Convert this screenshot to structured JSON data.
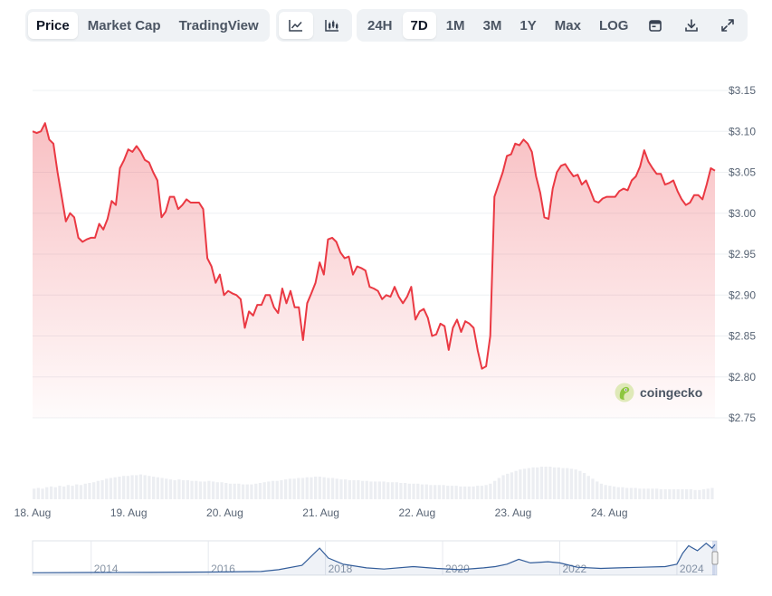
{
  "toolbar": {
    "view_tabs": [
      "Price",
      "Market Cap",
      "TradingView"
    ],
    "active_view": "Price",
    "chart_style_icons": [
      "line-chart-icon",
      "candlestick-chart-icon"
    ],
    "active_chart_style": "line-chart-icon",
    "ranges": [
      "24H",
      "7D",
      "1M",
      "3M",
      "1Y",
      "Max",
      "LOG"
    ],
    "active_range": "7D",
    "action_icons": [
      "calendar-icon",
      "download-icon",
      "expand-icon"
    ]
  },
  "brand": {
    "name": "coingecko"
  },
  "colors": {
    "line": "#ea3943",
    "fill": "#ea3943",
    "grid": "#eef0f3",
    "volume": "#eceef2",
    "navigator": "#335d9a"
  },
  "chart_data": {
    "type": "area",
    "y_ticks": [
      "$3.15",
      "$3.10",
      "$3.05",
      "$3.00",
      "$2.95",
      "$2.90",
      "$2.85",
      "$2.80",
      "$2.75"
    ],
    "y_tick_values": [
      3.15,
      3.1,
      3.05,
      3.0,
      2.95,
      2.9,
      2.85,
      2.8,
      2.75
    ],
    "ylim": [
      2.75,
      3.15
    ],
    "x_ticks": [
      "18. Aug",
      "19. Aug",
      "20. Aug",
      "21. Aug",
      "22. Aug",
      "23. Aug",
      "24. Aug"
    ],
    "x_start": "18. Aug",
    "x_days": 7.1,
    "grid": true,
    "series": [
      {
        "values": [
          3.1,
          3.098,
          3.1,
          3.11,
          3.09,
          3.085,
          3.05,
          3.02,
          2.99,
          3.0,
          2.995,
          2.97,
          2.965,
          2.968,
          2.97,
          2.97,
          2.987,
          2.98,
          2.993,
          3.015,
          3.01,
          3.055,
          3.065,
          3.078,
          3.075,
          3.082,
          3.075,
          3.065,
          3.062,
          3.05,
          3.04,
          2.995,
          3.002,
          3.02,
          3.02,
          3.005,
          3.01,
          3.017,
          3.013,
          3.013,
          3.013,
          3.005,
          2.945,
          2.935,
          2.915,
          2.925,
          2.9,
          2.905,
          2.902,
          2.9,
          2.895,
          2.86,
          2.88,
          2.875,
          2.888,
          2.888,
          2.9,
          2.9,
          2.885,
          2.878,
          2.908,
          2.89,
          2.905,
          2.885,
          2.885,
          2.845,
          2.89,
          2.902,
          2.915,
          2.94,
          2.925,
          2.968,
          2.97,
          2.965,
          2.952,
          2.945,
          2.947,
          2.925,
          2.935,
          2.933,
          2.93,
          2.91,
          2.908,
          2.905,
          2.895,
          2.9,
          2.898,
          2.91,
          2.898,
          2.89,
          2.898,
          2.91,
          2.87,
          2.88,
          2.883,
          2.872,
          2.85,
          2.852,
          2.865,
          2.862,
          2.833,
          2.86,
          2.87,
          2.855,
          2.868,
          2.865,
          2.86,
          2.832,
          2.81,
          2.813,
          2.85,
          3.02,
          3.035,
          3.05,
          3.07,
          3.072,
          3.085,
          3.083,
          3.09,
          3.085,
          3.075,
          3.045,
          3.025,
          2.995,
          2.993,
          3.03,
          3.05,
          3.058,
          3.06,
          3.052,
          3.045,
          3.047,
          3.035,
          3.04,
          3.028,
          3.015,
          3.013,
          3.018,
          3.02,
          3.02,
          3.02,
          3.027,
          3.03,
          3.028,
          3.04,
          3.045,
          3.057,
          3.077,
          3.063,
          3.055,
          3.048,
          3.048,
          3.035,
          3.037,
          3.04,
          3.027,
          3.017,
          3.01,
          3.013,
          3.022,
          3.022,
          3.017,
          3.035,
          3.055,
          3.052
        ]
      }
    ],
    "volume": {
      "values": [
        15,
        16,
        15,
        17,
        18,
        17,
        19,
        18,
        20,
        19,
        21,
        20,
        22,
        23,
        24,
        26,
        27,
        29,
        30,
        31,
        32,
        33,
        33,
        34,
        34,
        35,
        34,
        33,
        32,
        31,
        30,
        29,
        28,
        27,
        28,
        27,
        27,
        26,
        26,
        25,
        25,
        26,
        25,
        24,
        24,
        23,
        22,
        22,
        22,
        21,
        21,
        21,
        22,
        23,
        24,
        25,
        26,
        26,
        27,
        28,
        29,
        29,
        30,
        30,
        31,
        31,
        32,
        32,
        31,
        30,
        30,
        29,
        28,
        28,
        27,
        27,
        27,
        26,
        26,
        25,
        25,
        25,
        25,
        24,
        24,
        24,
        23,
        23,
        22,
        22,
        22,
        21,
        21,
        20,
        20,
        20,
        20,
        19,
        19,
        19,
        18,
        18,
        18,
        18,
        19,
        19,
        20,
        22,
        26,
        30,
        34,
        36,
        38,
        40,
        42,
        43,
        44,
        45,
        45,
        46,
        46,
        46,
        45,
        45,
        44,
        44,
        43,
        42,
        40,
        37,
        33,
        29,
        25,
        22,
        20,
        19,
        18,
        17,
        17,
        16,
        16,
        16,
        15,
        15,
        15,
        15,
        15,
        14,
        14,
        14,
        14,
        14,
        14,
        14,
        14,
        13,
        13,
        14,
        15,
        16
      ]
    },
    "navigator": {
      "x_ticks": [
        "2014",
        "2016",
        "2018",
        "2020",
        "2022",
        "2024"
      ],
      "x_tick_years": [
        2014,
        2016,
        2018,
        2020,
        2022,
        2024
      ],
      "x_range": [
        2013.0,
        2024.65
      ],
      "points": [
        [
          2013.0,
          2.0
        ],
        [
          2014.0,
          2.2
        ],
        [
          2015.0,
          2.3
        ],
        [
          2016.0,
          2.6
        ],
        [
          2016.9,
          3.0
        ],
        [
          2017.2,
          4.5
        ],
        [
          2017.6,
          8.0
        ],
        [
          2017.9,
          22.0
        ],
        [
          2018.05,
          14.0
        ],
        [
          2018.3,
          9.0
        ],
        [
          2018.7,
          6.0
        ],
        [
          2019.0,
          5.0
        ],
        [
          2019.5,
          7.0
        ],
        [
          2019.9,
          5.5
        ],
        [
          2020.3,
          4.5
        ],
        [
          2020.7,
          6.0
        ],
        [
          2020.9,
          7.0
        ],
        [
          2021.1,
          9.0
        ],
        [
          2021.3,
          13.0
        ],
        [
          2021.5,
          10.0
        ],
        [
          2021.8,
          11.0
        ],
        [
          2022.0,
          10.0
        ],
        [
          2022.3,
          6.5
        ],
        [
          2022.7,
          5.5
        ],
        [
          2023.0,
          6.0
        ],
        [
          2023.4,
          6.5
        ],
        [
          2023.8,
          7.0
        ],
        [
          2024.0,
          9.0
        ],
        [
          2024.1,
          18.0
        ],
        [
          2024.2,
          24.0
        ],
        [
          2024.35,
          20.0
        ],
        [
          2024.5,
          26.0
        ],
        [
          2024.6,
          22.0
        ],
        [
          2024.65,
          25.0
        ]
      ]
    }
  }
}
